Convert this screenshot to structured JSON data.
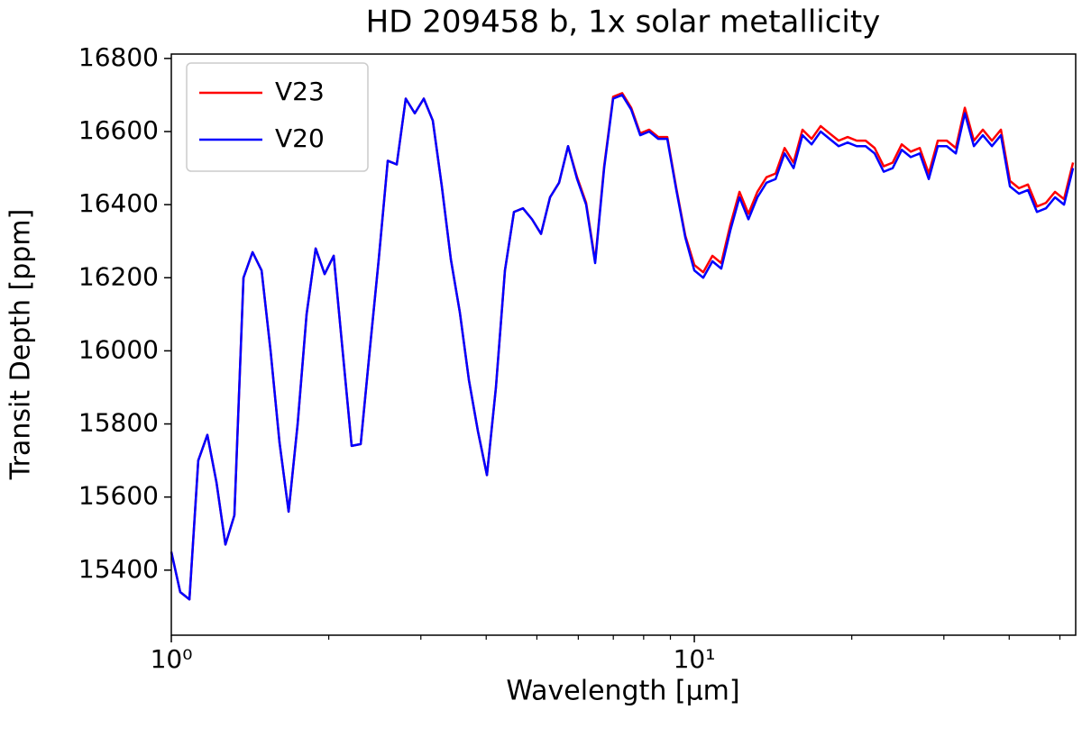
{
  "chart_data": {
    "type": "line",
    "title": "HD 209458 b, 1x solar metallicity",
    "xlabel": "Wavelength [µm]",
    "ylabel": "Transit Depth [ppm]",
    "xscale": "log",
    "xlim": [
      1,
      53.6
    ],
    "ylim": [
      15222,
      16812
    ],
    "xticks": [
      {
        "value": 1,
        "label": "10⁰"
      },
      {
        "value": 10,
        "label": "10¹"
      }
    ],
    "xminorticks": [
      2,
      3,
      4,
      5,
      6,
      7,
      8,
      9,
      20,
      30,
      40,
      50
    ],
    "yticks": [
      15400,
      15600,
      15800,
      16000,
      16200,
      16400,
      16600,
      16800
    ],
    "grid": false,
    "legend": "upper left",
    "x": [
      1.0,
      1.04,
      1.083,
      1.126,
      1.172,
      1.22,
      1.269,
      1.32,
      1.374,
      1.43,
      1.488,
      1.548,
      1.61,
      1.676,
      1.744,
      1.814,
      1.888,
      1.964,
      2.044,
      2.126,
      2.212,
      2.302,
      2.395,
      2.492,
      2.593,
      2.698,
      2.807,
      2.921,
      3.039,
      3.162,
      3.29,
      3.424,
      3.562,
      3.707,
      3.857,
      4.013,
      4.175,
      4.344,
      4.52,
      4.703,
      4.894,
      5.092,
      5.298,
      5.513,
      5.736,
      5.968,
      6.21,
      6.462,
      6.723,
      6.995,
      7.279,
      7.574,
      7.88,
      8.199,
      8.532,
      8.877,
      9.237,
      9.611,
      10.0,
      10.4,
      10.83,
      11.26,
      11.72,
      12.2,
      12.69,
      13.2,
      13.74,
      14.3,
      14.88,
      15.48,
      16.1,
      16.76,
      17.44,
      18.14,
      18.88,
      19.64,
      20.44,
      21.26,
      22.12,
      23.02,
      23.95,
      24.92,
      25.93,
      26.98,
      28.07,
      29.21,
      30.39,
      31.62,
      32.9,
      34.24,
      35.62,
      37.07,
      38.57,
      40.13,
      41.75,
      43.44,
      45.2,
      47.03,
      48.94,
      50.92,
      52.98
    ],
    "series": [
      {
        "name": "V23",
        "color": "#ff0000",
        "values": [
          15450,
          15340,
          15320,
          15700,
          15770,
          15640,
          15470,
          15550,
          16200,
          16270,
          16220,
          16000,
          15750,
          15560,
          15800,
          16100,
          16280,
          16210,
          16260,
          16000,
          15740,
          15745,
          16000,
          16250,
          16520,
          16510,
          16690,
          16650,
          16690,
          16630,
          16450,
          16250,
          16105,
          15920,
          15780,
          15660,
          15900,
          16220,
          16380,
          16390,
          16360,
          16320,
          16420,
          16460,
          16560,
          16475,
          16405,
          16245,
          16505,
          16695,
          16705,
          16665,
          16595,
          16605,
          16585,
          16585,
          16445,
          16315,
          16235,
          16215,
          16260,
          16240,
          16345,
          16435,
          16375,
          16435,
          16475,
          16485,
          16555,
          16515,
          16605,
          16580,
          16615,
          16595,
          16575,
          16585,
          16575,
          16575,
          16555,
          16505,
          16515,
          16565,
          16545,
          16555,
          16485,
          16575,
          16575,
          16555,
          16665,
          16575,
          16605,
          16575,
          16605,
          16465,
          16445,
          16455,
          16395,
          16405,
          16435,
          16415,
          16515
        ]
      },
      {
        "name": "V20",
        "color": "#0000ff",
        "values": [
          15450,
          15340,
          15320,
          15700,
          15770,
          15640,
          15470,
          15550,
          16200,
          16270,
          16220,
          16000,
          15750,
          15560,
          15800,
          16100,
          16280,
          16210,
          16260,
          16000,
          15740,
          15745,
          16000,
          16250,
          16520,
          16510,
          16690,
          16650,
          16690,
          16630,
          16450,
          16250,
          16105,
          15920,
          15780,
          15660,
          15900,
          16220,
          16380,
          16390,
          16360,
          16320,
          16420,
          16460,
          16560,
          16470,
          16400,
          16240,
          16500,
          16690,
          16700,
          16660,
          16590,
          16600,
          16580,
          16580,
          16440,
          16310,
          16220,
          16200,
          16245,
          16225,
          16330,
          16420,
          16360,
          16420,
          16460,
          16470,
          16540,
          16500,
          16590,
          16565,
          16600,
          16580,
          16560,
          16570,
          16560,
          16560,
          16540,
          16490,
          16500,
          16550,
          16530,
          16540,
          16470,
          16560,
          16560,
          16540,
          16650,
          16560,
          16590,
          16560,
          16590,
          16450,
          16430,
          16440,
          16380,
          16390,
          16420,
          16400,
          16500
        ]
      }
    ]
  }
}
